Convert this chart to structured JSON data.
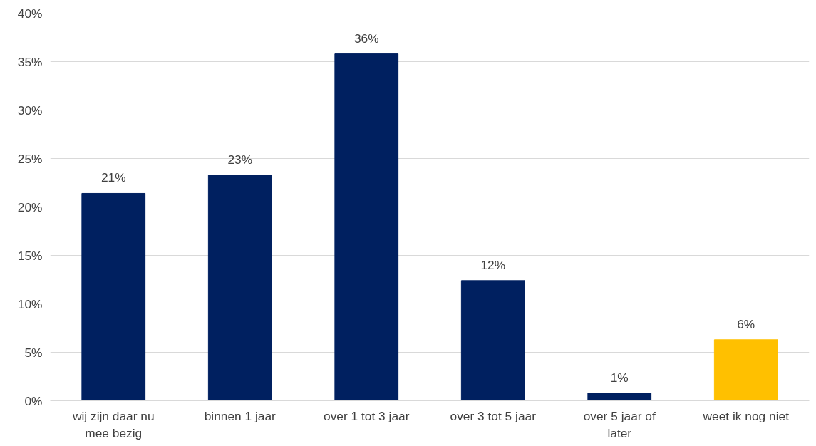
{
  "chart_data": {
    "type": "bar",
    "categories": [
      "wij zijn daar nu mee bezig",
      "binnen 1 jaar",
      "over 1 tot 3 jaar",
      "over 3 tot 5 jaar",
      "over 5 jaar of later",
      "weet ik nog niet"
    ],
    "values": [
      21.4,
      23.3,
      35.8,
      12.4,
      0.8,
      6.3
    ],
    "colors": [
      "#002060",
      "#002060",
      "#002060",
      "#002060",
      "#002060",
      "#ffc000"
    ],
    "value_labels": [
      "21%",
      "23%",
      "36%",
      "12%",
      "1%",
      "6%"
    ],
    "ylim": [
      0,
      40
    ],
    "yticks": [
      {
        "value": 0,
        "label": "0%"
      },
      {
        "value": 5,
        "label": "5%"
      },
      {
        "value": 10,
        "label": "10%"
      },
      {
        "value": 15,
        "label": "15%"
      },
      {
        "value": 20,
        "label": "20%"
      },
      {
        "value": 25,
        "label": "25%"
      },
      {
        "value": 30,
        "label": "30%"
      },
      {
        "value": 35,
        "label": "35%"
      },
      {
        "value": 40,
        "label": "40%"
      }
    ],
    "grid": "y"
  }
}
